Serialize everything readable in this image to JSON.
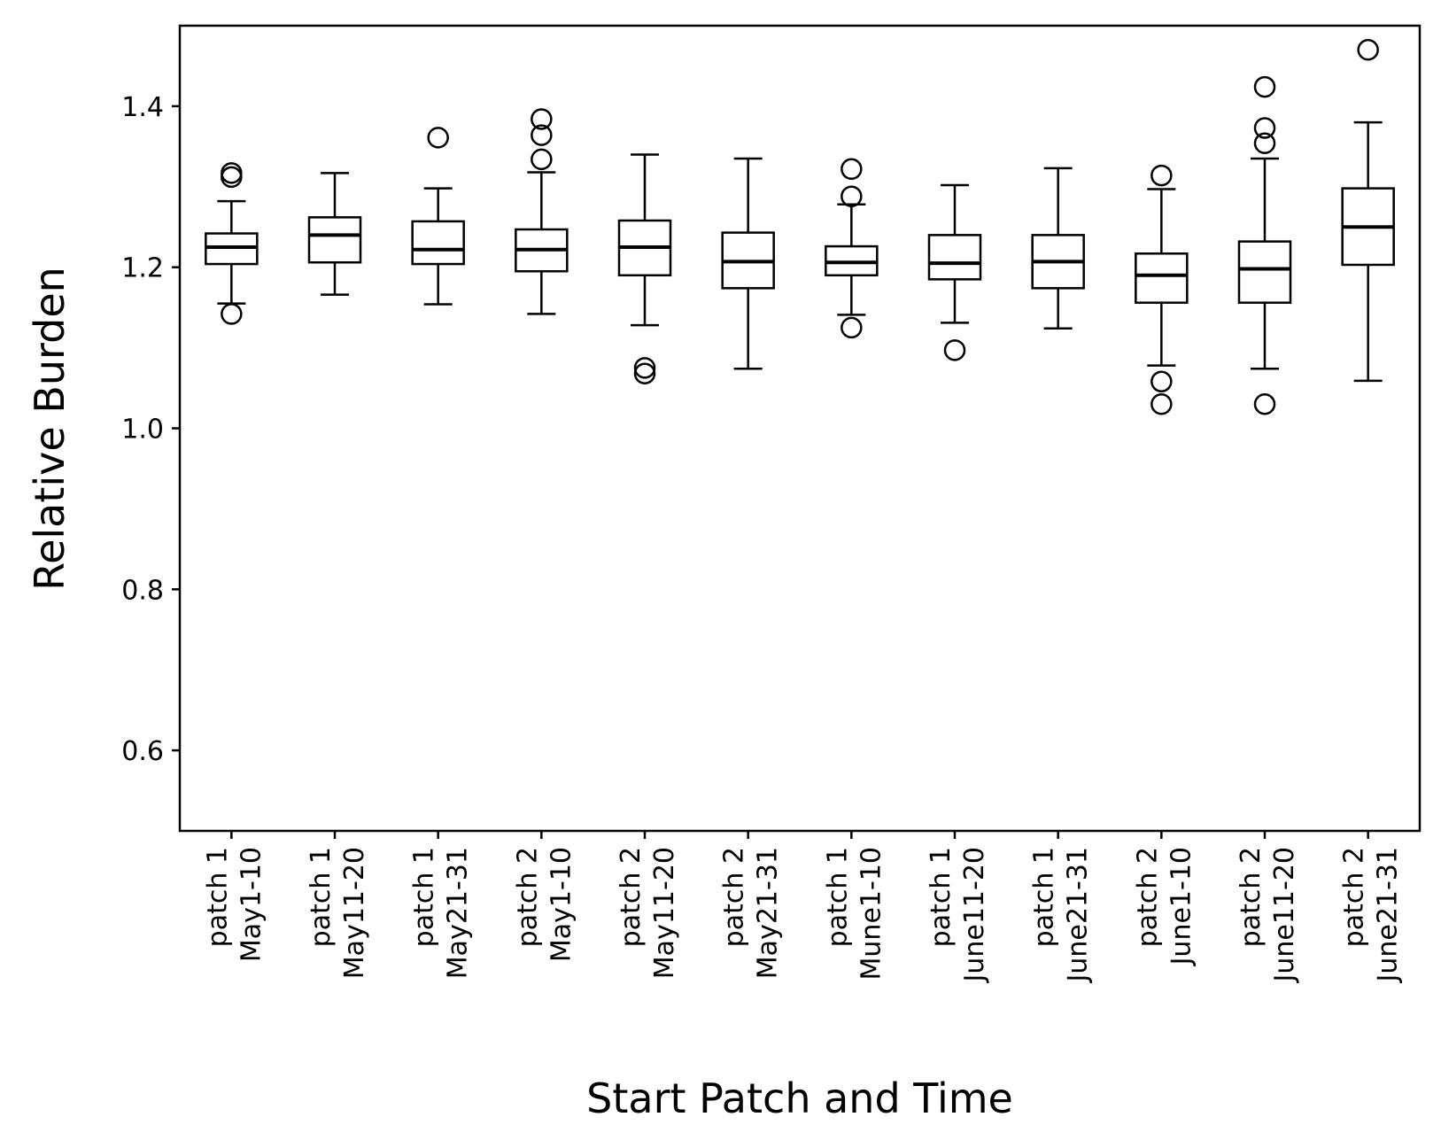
{
  "chart_data": {
    "type": "box",
    "title": "",
    "xlabel": "Start Patch and Time",
    "ylabel": "Relative Burden",
    "ylim": [
      0.5,
      1.5
    ],
    "yticks": [
      0.6,
      0.8,
      1.0,
      1.2,
      1.4
    ],
    "ytick_labels": [
      "0.6",
      "0.8",
      "1.0",
      "1.2",
      "1.4"
    ],
    "grid": false,
    "categories": [
      {
        "line1": "patch 1",
        "line2": "May1-10"
      },
      {
        "line1": "patch 1",
        "line2": "May11-20"
      },
      {
        "line1": "patch 1",
        "line2": "May21-31"
      },
      {
        "line1": "patch 2",
        "line2": "May1-10"
      },
      {
        "line1": "patch 2",
        "line2": "May11-20"
      },
      {
        "line1": "patch 2",
        "line2": "May21-31"
      },
      {
        "line1": "patch 1",
        "line2": "Mune1-10"
      },
      {
        "line1": "patch 1",
        "line2": "June11-20"
      },
      {
        "line1": "patch 1",
        "line2": "June21-31"
      },
      {
        "line1": "patch 2",
        "line2": "June1-10"
      },
      {
        "line1": "patch 2",
        "line2": "June11-20"
      },
      {
        "line1": "patch 2",
        "line2": "June21-31"
      }
    ],
    "boxes": [
      {
        "whislo": 1.155,
        "q1": 1.204,
        "med": 1.225,
        "q3": 1.242,
        "whishi": 1.282,
        "fliers": [
          1.142,
          1.312,
          1.317
        ]
      },
      {
        "whislo": 1.166,
        "q1": 1.206,
        "med": 1.24,
        "q3": 1.262,
        "whishi": 1.317,
        "fliers": []
      },
      {
        "whislo": 1.154,
        "q1": 1.204,
        "med": 1.222,
        "q3": 1.257,
        "whishi": 1.298,
        "fliers": [
          1.361
        ]
      },
      {
        "whislo": 1.142,
        "q1": 1.195,
        "med": 1.222,
        "q3": 1.247,
        "whishi": 1.318,
        "fliers": [
          1.334,
          1.364,
          1.384
        ]
      },
      {
        "whislo": 1.128,
        "q1": 1.19,
        "med": 1.225,
        "q3": 1.258,
        "whishi": 1.34,
        "fliers": [
          1.068,
          1.075
        ]
      },
      {
        "whislo": 1.074,
        "q1": 1.174,
        "med": 1.207,
        "q3": 1.243,
        "whishi": 1.335,
        "fliers": []
      },
      {
        "whislo": 1.141,
        "q1": 1.19,
        "med": 1.206,
        "q3": 1.226,
        "whishi": 1.278,
        "fliers": [
          1.125,
          1.288,
          1.322
        ]
      },
      {
        "whislo": 1.131,
        "q1": 1.185,
        "med": 1.205,
        "q3": 1.24,
        "whishi": 1.302,
        "fliers": [
          1.097
        ]
      },
      {
        "whislo": 1.124,
        "q1": 1.174,
        "med": 1.207,
        "q3": 1.24,
        "whishi": 1.323,
        "fliers": []
      },
      {
        "whislo": 1.078,
        "q1": 1.156,
        "med": 1.19,
        "q3": 1.217,
        "whishi": 1.297,
        "fliers": [
          1.03,
          1.058,
          1.314
        ]
      },
      {
        "whislo": 1.074,
        "q1": 1.156,
        "med": 1.198,
        "q3": 1.232,
        "whishi": 1.335,
        "fliers": [
          1.03,
          1.354,
          1.373,
          1.424
        ]
      },
      {
        "whislo": 1.059,
        "q1": 1.203,
        "med": 1.25,
        "q3": 1.298,
        "whishi": 1.38,
        "fliers": [
          1.47
        ]
      }
    ],
    "colors": {
      "line": "#000000",
      "background": "#ffffff"
    }
  }
}
